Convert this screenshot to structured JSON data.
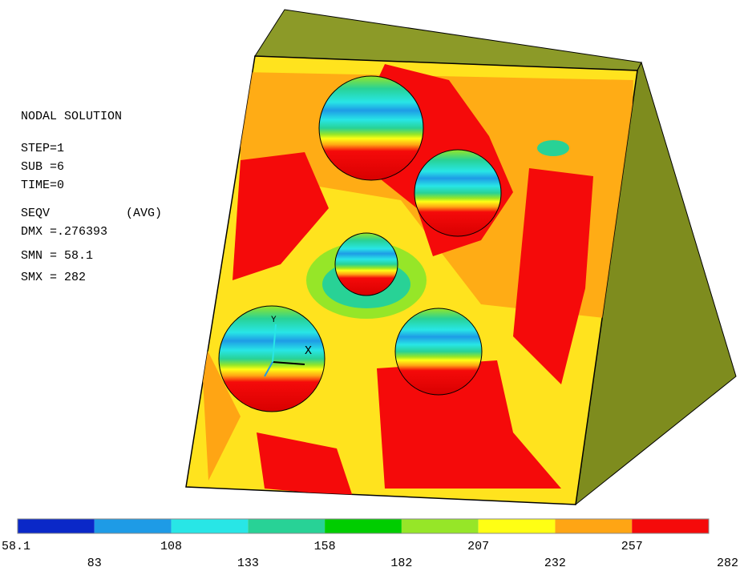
{
  "info": {
    "title": "NODAL SOLUTION",
    "lines": [
      "STEP=1",
      "SUB =6",
      "TIME=0"
    ],
    "result": "SEQV",
    "avg": "(AVG)",
    "stats": [
      "DMX =.276393",
      "SMN = 58.1",
      "SMX = 282"
    ]
  },
  "triad": {
    "x": "X",
    "y": "Y"
  },
  "legend": {
    "labels": [
      "58.1",
      "83",
      "108",
      "133",
      "158",
      "182",
      "207",
      "232",
      "257",
      "282"
    ],
    "colors": [
      "#0a28c8",
      "#1e9be6",
      "#28e6e6",
      "#28d296",
      "#00cd00",
      "#96e628",
      "#ffff14",
      "#ffa514",
      "#f50a0a"
    ]
  }
}
